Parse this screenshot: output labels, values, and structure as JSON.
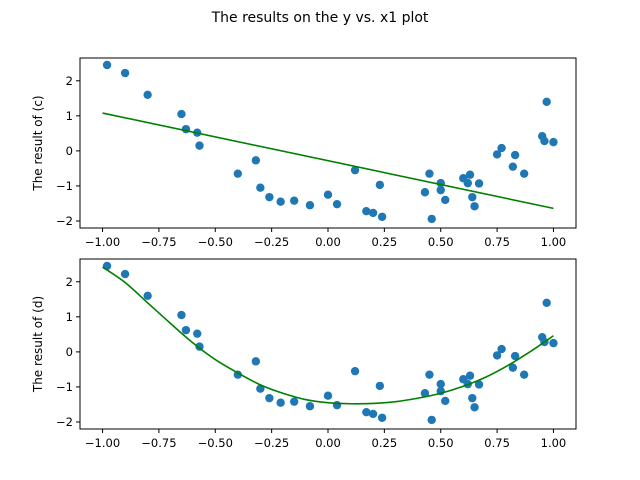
{
  "figure": {
    "suptitle": "The results on the y vs. x1 plot"
  },
  "colors": {
    "points": "#1f77b4",
    "fit_line": "#008000",
    "axes": "#000000",
    "background": "#ffffff"
  },
  "chart_data": [
    {
      "type": "scatter",
      "title": "",
      "xlabel": "",
      "ylabel": "The result of (c)",
      "xlim": [
        -1.1,
        1.1
      ],
      "ylim": [
        -2.2,
        2.65
      ],
      "xticks": [
        -1.0,
        -0.75,
        -0.5,
        -0.25,
        0.0,
        0.25,
        0.5,
        0.75,
        1.0
      ],
      "xtick_labels": [
        "−1.00",
        "−0.75",
        "−0.50",
        "−0.25",
        "0.00",
        "0.25",
        "0.50",
        "0.75",
        "1.00"
      ],
      "yticks": [
        -2,
        -1,
        0,
        1,
        2
      ],
      "ytick_labels": [
        "−2",
        "−1",
        "0",
        "1",
        "2"
      ],
      "grid": false,
      "series": [
        {
          "kind": "points",
          "x": [
            -0.98,
            -0.9,
            -0.8,
            -0.65,
            -0.63,
            -0.58,
            -0.57,
            -0.4,
            -0.32,
            -0.3,
            -0.26,
            -0.21,
            -0.15,
            -0.08,
            0.0,
            0.04,
            0.12,
            0.17,
            0.2,
            0.23,
            0.24,
            0.43,
            0.45,
            0.46,
            0.5,
            0.5,
            0.52,
            0.6,
            0.62,
            0.63,
            0.64,
            0.65,
            0.67,
            0.75,
            0.77,
            0.82,
            0.83,
            0.87,
            0.95,
            0.96,
            0.97,
            1.0
          ],
          "y": [
            2.45,
            2.22,
            1.6,
            1.05,
            0.62,
            0.52,
            0.15,
            -0.65,
            -0.27,
            -1.05,
            -1.32,
            -1.45,
            -1.42,
            -1.55,
            -1.25,
            -1.52,
            -0.55,
            -1.72,
            -1.77,
            -0.97,
            -1.88,
            -1.18,
            -0.65,
            -1.94,
            -0.92,
            -1.12,
            -1.4,
            -0.78,
            -0.92,
            -0.68,
            -1.32,
            -1.58,
            -0.93,
            -0.1,
            0.08,
            -0.45,
            -0.12,
            -0.65,
            0.42,
            0.28,
            1.4,
            0.25
          ]
        },
        {
          "kind": "line",
          "x": [
            -1.0,
            1.0
          ],
          "y": [
            1.08,
            -1.64
          ]
        }
      ]
    },
    {
      "type": "scatter",
      "title": "",
      "xlabel": "",
      "ylabel": "The result of (d)",
      "xlim": [
        -1.1,
        1.1
      ],
      "ylim": [
        -2.2,
        2.65
      ],
      "xticks": [
        -1.0,
        -0.75,
        -0.5,
        -0.25,
        0.0,
        0.25,
        0.5,
        0.75,
        1.0
      ],
      "xtick_labels": [
        "−1.00",
        "−0.75",
        "−0.50",
        "−0.25",
        "0.00",
        "0.25",
        "0.50",
        "0.75",
        "1.00"
      ],
      "yticks": [
        -2,
        -1,
        0,
        1,
        2
      ],
      "ytick_labels": [
        "−2",
        "−1",
        "0",
        "1",
        "2"
      ],
      "grid": false,
      "series": [
        {
          "kind": "points",
          "x": [
            -0.98,
            -0.9,
            -0.8,
            -0.65,
            -0.63,
            -0.58,
            -0.57,
            -0.4,
            -0.32,
            -0.3,
            -0.26,
            -0.21,
            -0.15,
            -0.08,
            0.0,
            0.04,
            0.12,
            0.17,
            0.2,
            0.23,
            0.24,
            0.43,
            0.45,
            0.46,
            0.5,
            0.5,
            0.52,
            0.6,
            0.62,
            0.63,
            0.64,
            0.65,
            0.67,
            0.75,
            0.77,
            0.82,
            0.83,
            0.87,
            0.95,
            0.96,
            0.97,
            1.0
          ],
          "y": [
            2.45,
            2.22,
            1.6,
            1.05,
            0.62,
            0.52,
            0.15,
            -0.65,
            -0.27,
            -1.05,
            -1.32,
            -1.45,
            -1.42,
            -1.55,
            -1.25,
            -1.52,
            -0.55,
            -1.72,
            -1.77,
            -0.97,
            -1.88,
            -1.18,
            -0.65,
            -1.94,
            -0.92,
            -1.12,
            -1.4,
            -0.78,
            -0.92,
            -0.68,
            -1.32,
            -1.58,
            -0.93,
            -0.1,
            0.08,
            -0.45,
            -0.12,
            -0.65,
            0.42,
            0.28,
            1.4,
            0.25
          ]
        },
        {
          "kind": "line",
          "x": [
            -1.0,
            -0.9,
            -0.8,
            -0.7,
            -0.6,
            -0.5,
            -0.4,
            -0.3,
            -0.2,
            -0.1,
            0.0,
            0.1,
            0.2,
            0.3,
            0.4,
            0.5,
            0.6,
            0.7,
            0.8,
            0.9,
            1.0
          ],
          "y": [
            2.42,
            1.98,
            1.4,
            0.82,
            0.26,
            -0.22,
            -0.6,
            -0.94,
            -1.18,
            -1.36,
            -1.45,
            -1.48,
            -1.47,
            -1.42,
            -1.32,
            -1.18,
            -0.98,
            -0.72,
            -0.38,
            0.02,
            0.46
          ]
        }
      ]
    }
  ]
}
